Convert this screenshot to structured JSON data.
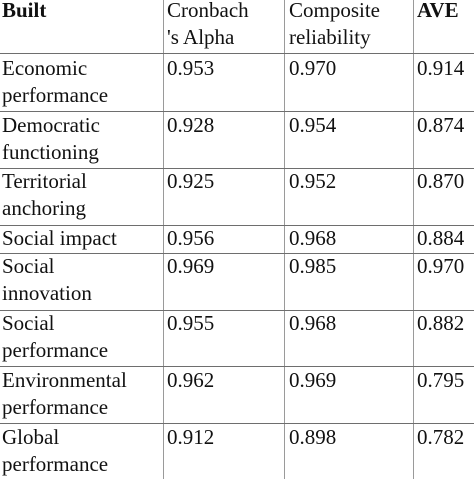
{
  "headers": [
    {
      "lines": [
        "Built"
      ],
      "bold": true
    },
    {
      "lines": [
        "Cronbach",
        "'s Alpha"
      ],
      "bold": false
    },
    {
      "lines": [
        "Composite",
        "reliability"
      ],
      "bold": false
    },
    {
      "lines": [
        "AVE"
      ],
      "bold": true
    }
  ],
  "rows": [
    {
      "construct": [
        "Economic",
        "performance"
      ],
      "alpha": "0.953",
      "composite": "0.970",
      "ave": "0.914"
    },
    {
      "construct": [
        "Democratic",
        "functioning"
      ],
      "alpha": "0.928",
      "composite": "0.954",
      "ave": "0.874"
    },
    {
      "construct": [
        "Territorial",
        "anchoring"
      ],
      "alpha": "0.925",
      "composite": "0.952",
      "ave": "0.870"
    },
    {
      "construct": [
        "Social impact"
      ],
      "alpha": "0.956",
      "composite": "0.968",
      "ave": "0.884"
    },
    {
      "construct": [
        "Social",
        "innovation"
      ],
      "alpha": "0.969",
      "composite": "0.985",
      "ave": "0.970"
    },
    {
      "construct": [
        "Social",
        "performance"
      ],
      "alpha": "0.955",
      "composite": "0.968",
      "ave": "0.882"
    },
    {
      "construct": [
        "Environmental",
        "performance"
      ],
      "alpha": "0.962",
      "composite": "0.969",
      "ave": "0.795"
    },
    {
      "construct": [
        "Global",
        "performance"
      ],
      "alpha": "0.912",
      "composite": "0.898",
      "ave": "0.782"
    }
  ]
}
